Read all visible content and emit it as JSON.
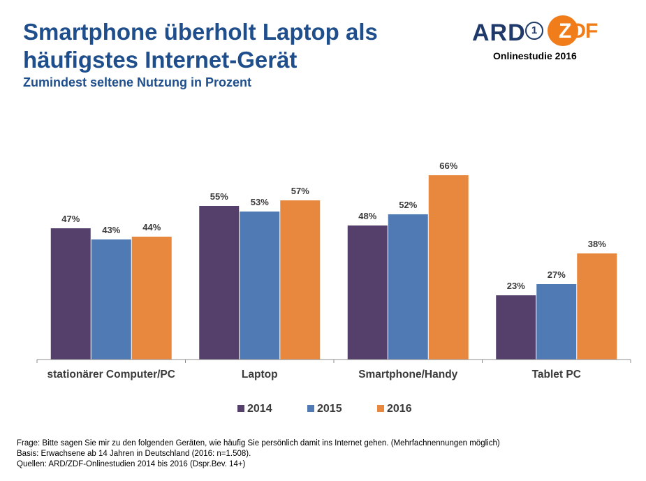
{
  "header": {
    "title_line1": "Smartphone überholt Laptop als",
    "title_line2": "häufigstes Internet-Gerät",
    "subtitle": "Zumindest seltene Nutzung in Prozent"
  },
  "logo": {
    "ard": "ARD",
    "ard_one": "1",
    "zdf_z": "Z",
    "zdf_rest": "DF",
    "study": "Onlinestudie 2016"
  },
  "chart_data": {
    "type": "bar",
    "title": "Smartphone überholt Laptop als häufigstes Internet-Gerät",
    "subtitle": "Zumindest seltene Nutzung in Prozent",
    "xlabel": "",
    "ylabel": "",
    "ylim": [
      0,
      75
    ],
    "grid": false,
    "legend": "bottom-center",
    "categories": [
      "stationärer Computer/PC",
      "Laptop",
      "Smartphone/Handy",
      "Tablet PC"
    ],
    "series": [
      {
        "name": "2014",
        "color": "#54406b",
        "values": [
          47,
          55,
          48,
          23
        ],
        "labels": [
          "47%",
          "55%",
          "48%",
          "23%"
        ]
      },
      {
        "name": "2015",
        "color": "#4f7ab4",
        "values": [
          43,
          53,
          52,
          27
        ],
        "labels": [
          "43%",
          "53%",
          "52%",
          "27%"
        ]
      },
      {
        "name": "2016",
        "color": "#e8873e",
        "values": [
          44,
          57,
          66,
          38
        ],
        "labels": [
          "44%",
          "57%",
          "66%",
          "38%"
        ]
      }
    ]
  },
  "footer": {
    "frage": "Frage: Bitte sagen Sie mir zu den folgenden Geräten, wie häufig Sie persönlich damit ins Internet gehen. (Mehrfachnennungen möglich)",
    "basis": "Basis: Erwachsene ab 14 Jahren in Deutschland  (2016: n=1.508).",
    "quellen": "Quellen: ARD/ZDF-Onlinestudien 2014 bis 2016 (Dspr.Bev. 14+)"
  }
}
